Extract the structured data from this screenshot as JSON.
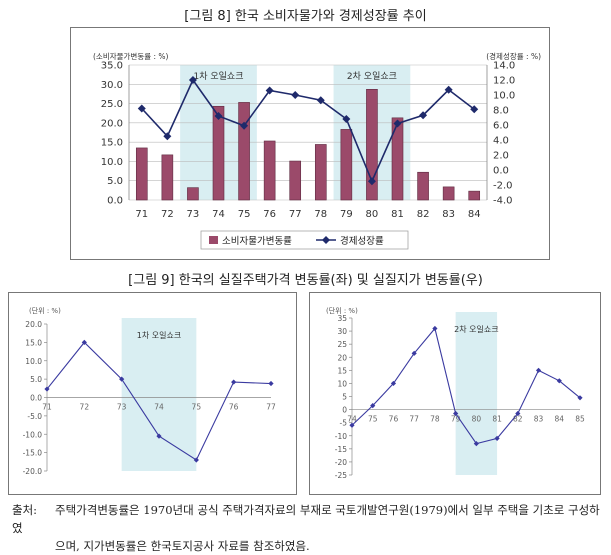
{
  "fig8": {
    "title": "[그림 8] 한국 소비자물가와 경제성장률 추이",
    "chart_data": {
      "type": "bar+line",
      "categories": [
        "71",
        "72",
        "73",
        "74",
        "75",
        "76",
        "77",
        "78",
        "79",
        "80",
        "81",
        "82",
        "83",
        "84"
      ],
      "series": [
        {
          "name": "소비자물가변동률",
          "type": "bar",
          "axis": "left",
          "color": "#9b4a6a",
          "values": [
            13.5,
            11.7,
            3.2,
            24.3,
            25.3,
            15.3,
            10.1,
            14.4,
            18.3,
            28.7,
            21.3,
            7.2,
            3.4,
            2.3
          ]
        },
        {
          "name": "경제성장률",
          "type": "line",
          "axis": "right",
          "color": "#1f2a6b",
          "values": [
            8.2,
            4.5,
            12.0,
            7.2,
            5.9,
            10.6,
            10.0,
            9.3,
            6.8,
            -1.5,
            6.2,
            7.3,
            10.7,
            8.1
          ]
        }
      ],
      "left_axis": {
        "label": "(소비자물가변동률 : %)",
        "ylim": [
          0,
          35
        ],
        "ticks": [
          "0.0",
          "5.0",
          "10.0",
          "15.0",
          "20.0",
          "25.0",
          "30.0",
          "35.0"
        ]
      },
      "right_axis": {
        "label": "(경제성장률 : %)",
        "ylim": [
          -4,
          14
        ],
        "ticks": [
          "-4.0",
          "-2.0",
          "0.0",
          "2.0",
          "4.0",
          "6.0",
          "8.0",
          "10.0",
          "12.0",
          "14.0"
        ]
      },
      "shaded": [
        {
          "label": "1차 오일쇼크",
          "from": "73",
          "to": "75"
        },
        {
          "label": "2차 오일쇼크",
          "from": "79",
          "to": "81"
        }
      ],
      "legend": [
        "소비자물가변동률",
        "경제성장률"
      ],
      "legend_position": "bottom",
      "grid": true
    }
  },
  "fig9": {
    "title": "[그림 9] 한국의 실질주택가격 변동률(좌) 및 실질지가 변동률(우)",
    "left": {
      "chart_data": {
        "type": "line",
        "categories": [
          "71",
          "72",
          "73",
          "74",
          "75",
          "76",
          "77"
        ],
        "values": [
          2.3,
          15.0,
          5.0,
          -10.5,
          -17.0,
          4.2,
          3.8
        ],
        "unit_label": "(단위 : %)",
        "ylim": [
          -20,
          20
        ],
        "ticks": [
          "-20.0",
          "-15.0",
          "-10.0",
          "-5.0",
          "0.0",
          "5.0",
          "10.0",
          "15.0",
          "20.0"
        ],
        "shaded": {
          "label": "1차 오일쇼크",
          "from": "73",
          "to": "75"
        },
        "color": "#3a3aa0",
        "grid": false
      }
    },
    "right": {
      "chart_data": {
        "type": "line",
        "categories": [
          "74",
          "75",
          "76",
          "77",
          "78",
          "79",
          "80",
          "81",
          "82",
          "83",
          "84",
          "85"
        ],
        "values": [
          -6.0,
          1.5,
          10.0,
          21.5,
          31.0,
          -1.5,
          -13.0,
          -11.0,
          -1.5,
          15.0,
          11.0,
          4.5
        ],
        "unit_label": "(단위 : %)",
        "ylim": [
          -25,
          35
        ],
        "ticks": [
          "-25",
          "-20",
          "-15",
          "-10",
          "-5",
          "0",
          "5",
          "10",
          "15",
          "20",
          "25",
          "30",
          "35"
        ],
        "shaded": {
          "label": "2차 오일쇼크",
          "from": "79",
          "to": "81"
        },
        "color": "#3a3aa0",
        "grid": false
      }
    }
  },
  "source": {
    "prefix": "출처:",
    "line1": "주택가격변동률은 1970년대 공식 주택가격자료의 부재로 국토개발연구원(1979)에서 일부 주택을 기초로 구성하였",
    "line2": "으며, 지가변동률은 한국토지공사 자료를 참조하였음."
  },
  "colors": {
    "shade": "#d9eef2",
    "grid": "#bbbbbb",
    "axis_text": "#333333"
  }
}
